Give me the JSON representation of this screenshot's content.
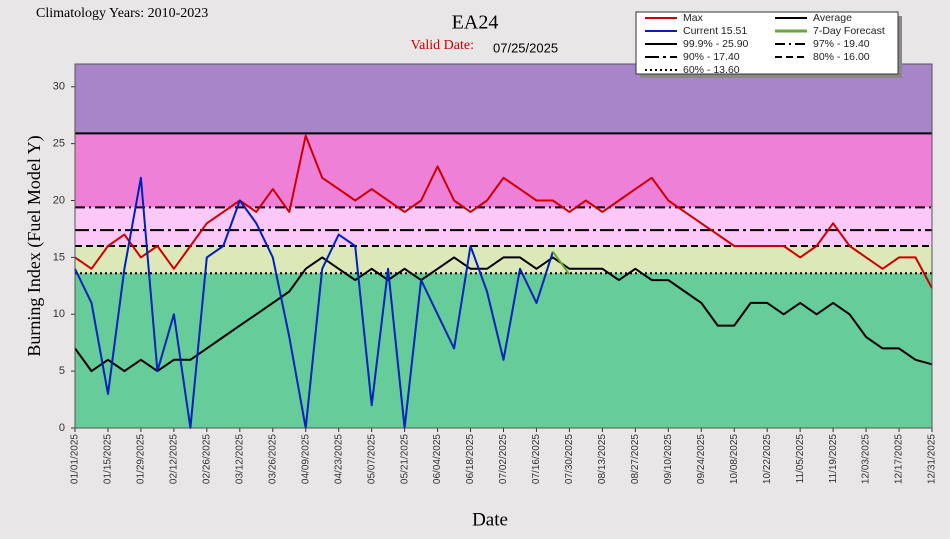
{
  "chart_data": {
    "type": "line",
    "title": "EA24",
    "subtitle_label": "Valid Date:",
    "subtitle_value": "07/25/2025",
    "corner_note": "Climatology Years: 2010-2023",
    "xlabel": "Date",
    "ylabel": "Burning Index (Fuel Model Y)",
    "ylim": [
      0,
      32
    ],
    "yticks": [
      0,
      5,
      10,
      15,
      20,
      25,
      30
    ],
    "x": [
      "01/01/2025",
      "01/08/2025",
      "01/15/2025",
      "01/22/2025",
      "01/29/2025",
      "02/05/2025",
      "02/12/2025",
      "02/19/2025",
      "02/26/2025",
      "03/05/2025",
      "03/12/2025",
      "03/19/2025",
      "03/26/2025",
      "04/02/2025",
      "04/09/2025",
      "04/16/2025",
      "04/23/2025",
      "04/30/2025",
      "05/07/2025",
      "05/14/2025",
      "05/21/2025",
      "05/28/2025",
      "06/04/2025",
      "06/11/2025",
      "06/18/2025",
      "06/25/2025",
      "07/02/2025",
      "07/09/2025",
      "07/16/2025",
      "07/23/2025",
      "07/30/2025",
      "08/06/2025",
      "08/13/2025",
      "08/20/2025",
      "08/27/2025",
      "09/03/2025",
      "09/10/2025",
      "09/17/2025",
      "09/24/2025",
      "10/01/2025",
      "10/08/2025",
      "10/15/2025",
      "10/22/2025",
      "10/29/2025",
      "11/05/2025",
      "11/12/2025",
      "11/19/2025",
      "11/26/2025",
      "12/03/2025",
      "12/10/2025",
      "12/17/2025",
      "12/24/2025",
      "12/31/2025"
    ],
    "xticks": [
      "01/01/2025",
      "01/15/2025",
      "01/29/2025",
      "02/12/2025",
      "02/26/2025",
      "03/12/2025",
      "03/26/2025",
      "04/09/2025",
      "04/23/2025",
      "05/07/2025",
      "05/21/2025",
      "06/04/2025",
      "06/18/2025",
      "07/02/2025",
      "07/16/2025",
      "07/30/2025",
      "08/13/2025",
      "08/27/2025",
      "09/10/2025",
      "09/24/2025",
      "10/08/2025",
      "10/22/2025",
      "11/05/2025",
      "11/19/2025",
      "12/03/2025",
      "12/17/2025",
      "12/31/2025"
    ],
    "series": [
      {
        "name": "Max",
        "color": "#cc0000",
        "values": [
          15,
          14,
          16,
          17,
          15,
          16,
          14,
          16,
          18,
          19,
          20,
          19,
          21,
          19,
          25.7,
          22,
          21,
          20,
          21,
          20,
          19,
          20,
          23,
          20,
          19,
          20,
          22,
          21,
          20,
          20,
          19,
          20,
          19,
          20,
          21,
          22,
          20,
          19,
          18,
          17,
          16,
          16,
          16,
          16,
          15,
          16,
          18,
          16,
          15,
          14,
          15,
          15,
          12.3
        ]
      },
      {
        "name": "Average",
        "color": "#000000",
        "values": [
          7,
          5,
          6,
          5,
          6,
          5,
          6,
          6,
          7,
          8,
          9,
          10,
          11,
          12,
          14,
          15,
          14,
          13,
          14,
          13,
          14,
          13,
          14,
          15,
          14,
          14,
          15,
          15,
          14,
          15,
          14,
          14,
          14,
          13,
          14,
          13,
          13,
          12,
          11,
          9,
          9,
          11,
          11,
          10,
          11,
          10,
          11,
          10,
          8,
          7,
          7,
          6,
          5.6
        ]
      },
      {
        "name": "Current 15.51",
        "color": "#0022bb",
        "values": [
          14,
          11,
          3,
          14,
          22,
          5,
          10,
          0,
          15,
          16,
          20,
          18,
          15,
          8,
          0,
          14,
          17,
          16,
          2,
          14,
          0,
          13,
          10,
          7,
          16,
          12,
          6,
          14,
          11,
          15.5,
          null,
          null,
          null,
          null,
          null,
          null,
          null,
          null,
          null,
          null,
          null,
          null,
          null,
          null,
          null,
          null,
          null,
          null,
          null,
          null,
          null,
          null,
          null
        ]
      },
      {
        "name": "7-Day Forecast",
        "color": "#66aa33",
        "values": [
          null,
          null,
          null,
          null,
          null,
          null,
          null,
          null,
          null,
          null,
          null,
          null,
          null,
          null,
          null,
          null,
          null,
          null,
          null,
          null,
          null,
          null,
          null,
          null,
          null,
          null,
          null,
          null,
          null,
          15.5,
          13.5,
          null,
          null,
          null,
          null,
          null,
          null,
          null,
          null,
          null,
          null,
          null,
          null,
          null,
          null,
          null,
          null,
          null,
          null,
          null,
          null,
          null,
          null
        ]
      }
    ],
    "thresholds": [
      {
        "name": "99.9% - 25.90",
        "value": 25.9,
        "dash": "none",
        "band": true
      },
      {
        "name": "97% - 19.40",
        "value": 19.4,
        "dash": "10 4 2 4",
        "band": true
      },
      {
        "name": "90% - 17.40",
        "value": 17.4,
        "dash": "14 4 3 4",
        "band": false
      },
      {
        "name": "80% - 16.00",
        "value": 16.0,
        "dash": "7 4",
        "band": true
      },
      {
        "name": "60% - 13.60",
        "value": 13.6,
        "dash": "2 3",
        "band": true
      }
    ],
    "band_colors": [
      "#66cc99",
      "#dde8b8",
      "#fcc8f8",
      "#ee80d8",
      "#a884c8"
    ]
  }
}
